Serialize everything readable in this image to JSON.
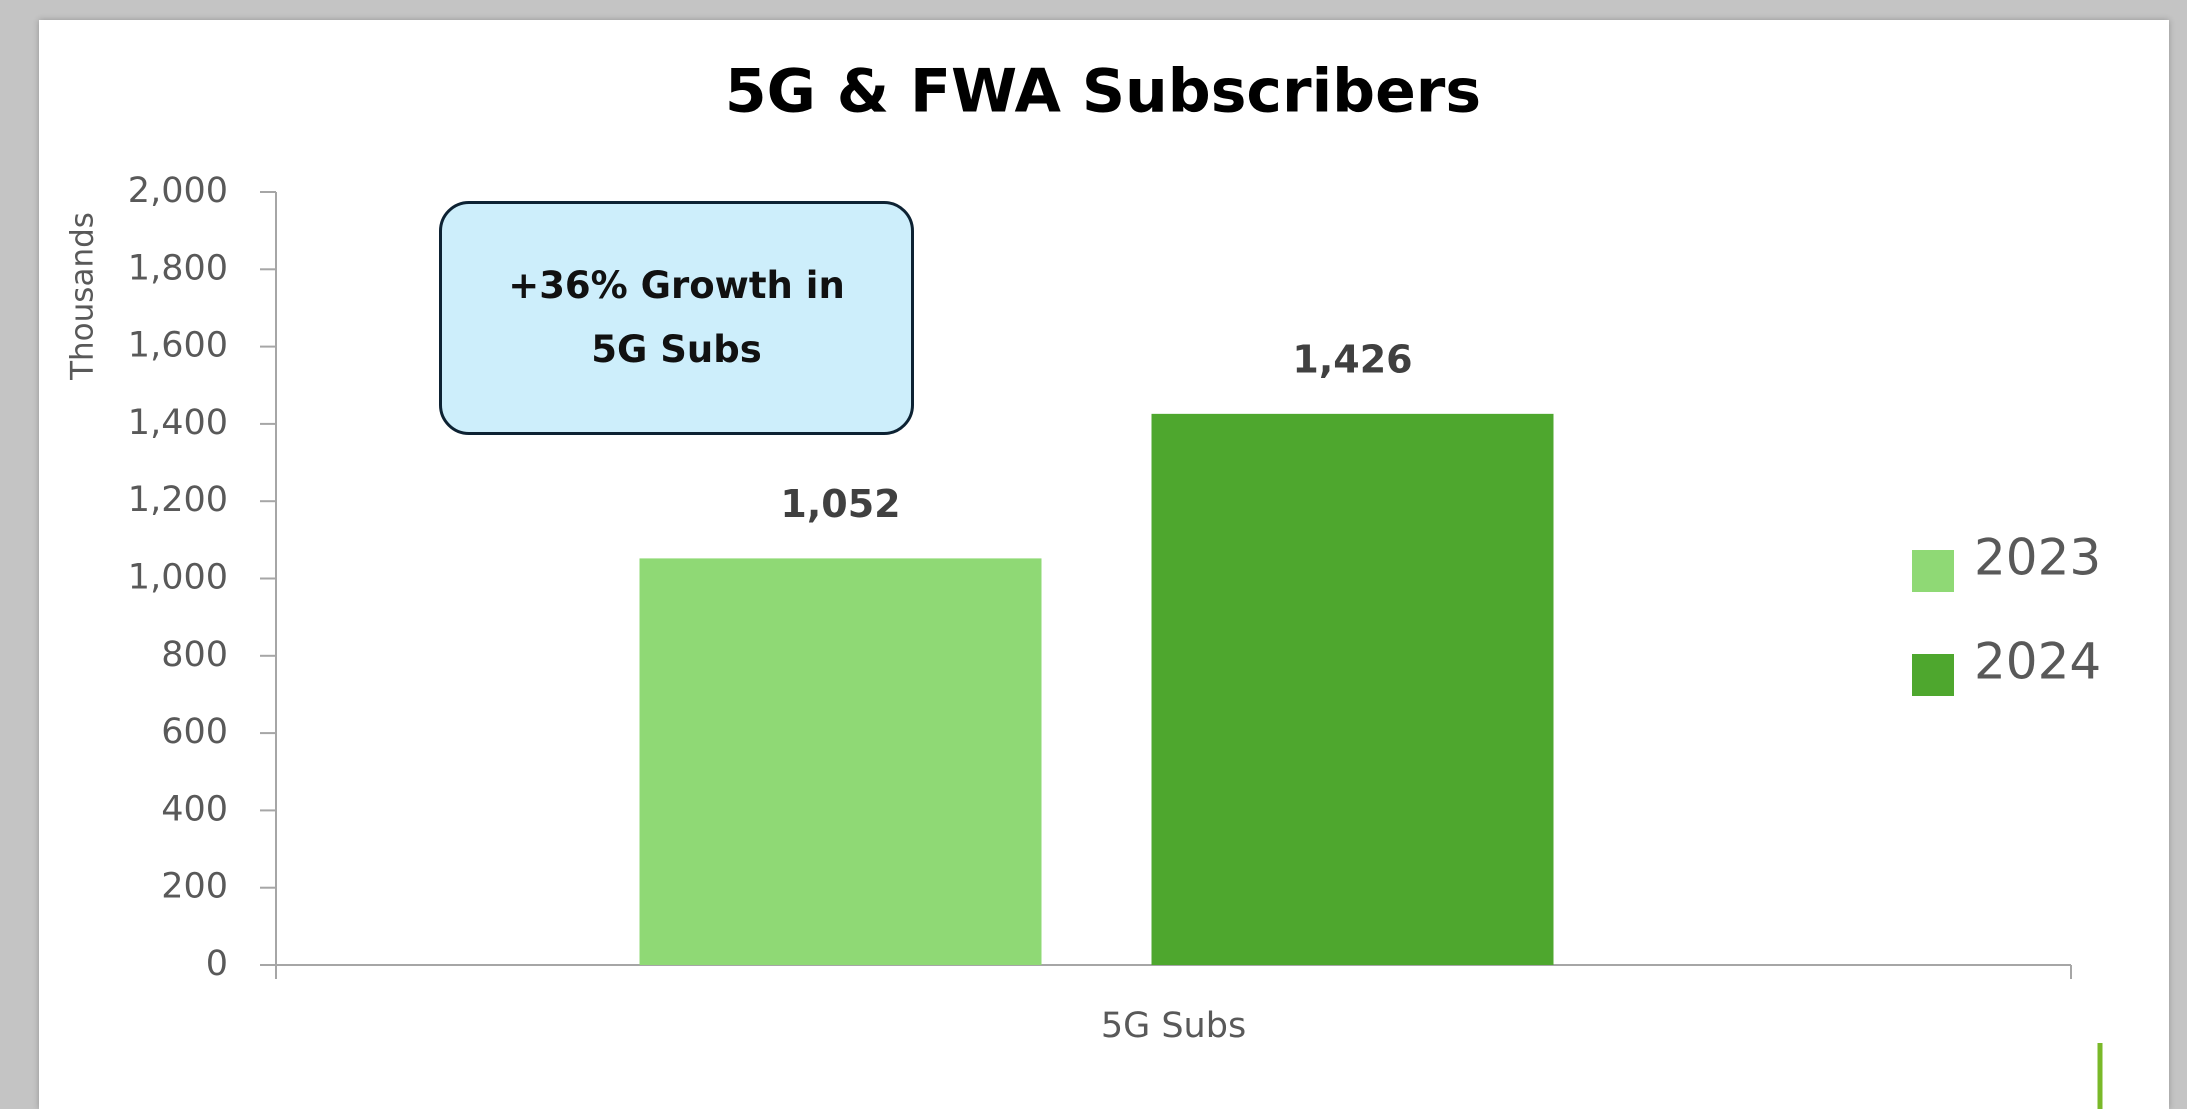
{
  "chart_data": {
    "type": "bar",
    "title": "5G & FWA Subscribers",
    "ylabel": "Thousands",
    "categories": [
      "5G Subs"
    ],
    "series": [
      {
        "name": "2023",
        "color": "#8fd975",
        "values": [
          1052
        ],
        "value_labels": [
          "1,052"
        ]
      },
      {
        "name": "2024",
        "color": "#4ea72e",
        "values": [
          1426
        ],
        "value_labels": [
          "1,426"
        ]
      }
    ],
    "annotation": "+36% Growth in 5G Subs",
    "ylim": [
      0,
      2000
    ],
    "yticks": [
      0,
      200,
      400,
      600,
      800,
      {
        "value": 1000,
        "label": "1,000"
      },
      {
        "value": 1200,
        "label": "1,200"
      },
      {
        "value": 1400,
        "label": "1,400"
      },
      {
        "value": 1600,
        "label": "1,600"
      },
      {
        "value": 1800,
        "label": "1,800"
      },
      {
        "value": 2000,
        "label": "2,000"
      }
    ],
    "legend": "right"
  }
}
